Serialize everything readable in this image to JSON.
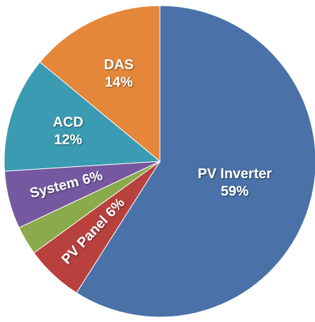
{
  "chart_data": {
    "type": "pie",
    "categories": [
      "PV Inverter",
      "PV Panel",
      null,
      "System",
      "ACD",
      "DAS"
    ],
    "values": [
      59,
      6,
      3,
      6,
      12,
      14
    ],
    "value_labels": [
      "59%",
      "6%",
      null,
      "6%",
      "12%",
      "14%"
    ],
    "colors": [
      "#4a72a8",
      "#b8413e",
      "#8baa4b",
      "#7558a0",
      "#3a9bb2",
      "#e5873a"
    ]
  }
}
